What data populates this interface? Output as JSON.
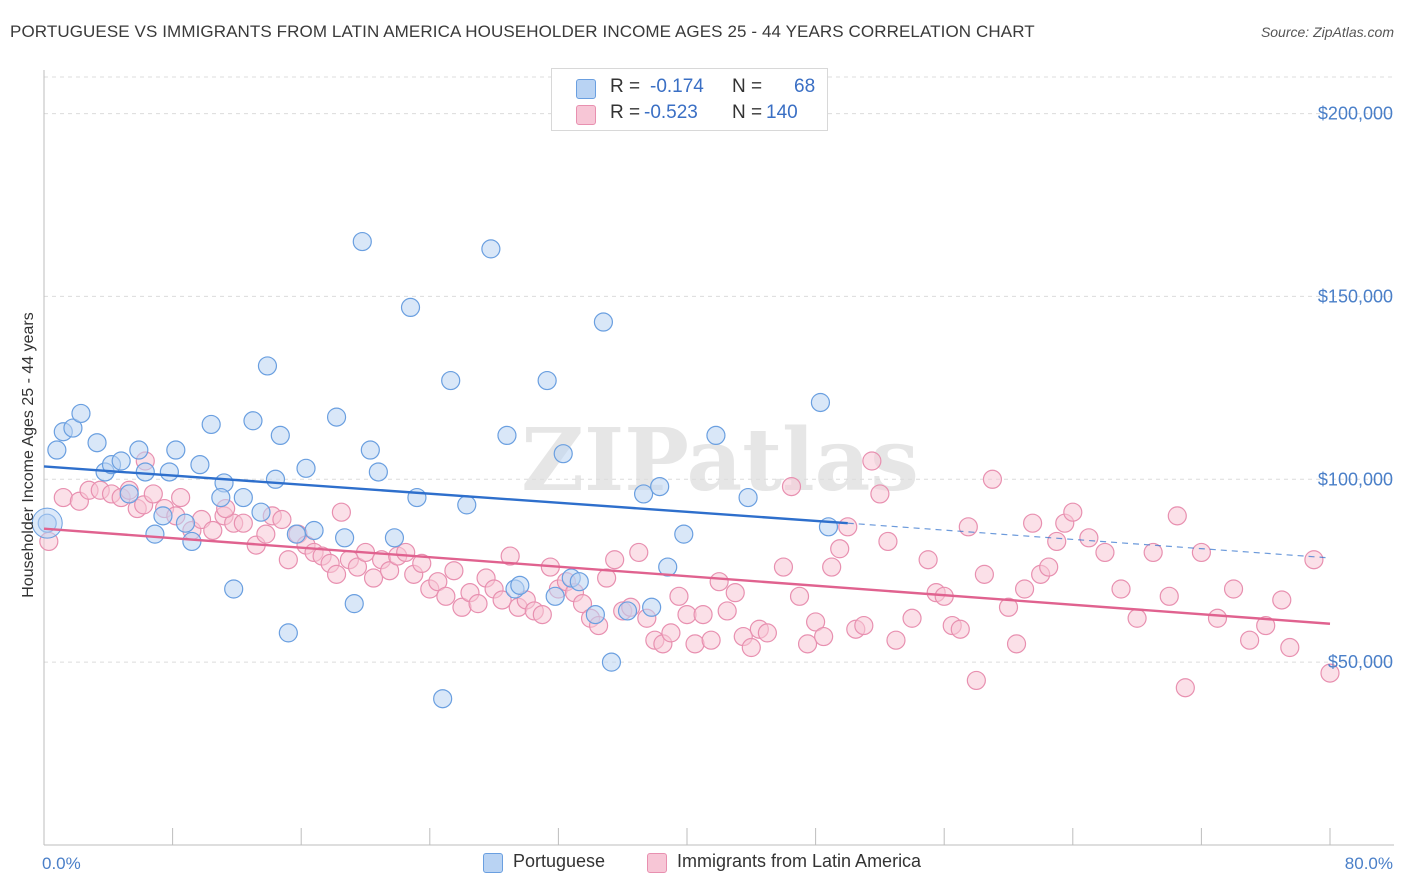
{
  "title": "PORTUGUESE VS IMMIGRANTS FROM LATIN AMERICA HOUSEHOLDER INCOME AGES 25 - 44 YEARS CORRELATION CHART",
  "source": "Source: ZipAtlas.com",
  "watermark": "ZIPatlas",
  "legend_top": {
    "rows": [
      {
        "r_label": "R =",
        "r_value": "-0.174",
        "n_label": "N =",
        "n_value": "68"
      },
      {
        "r_label": "R =",
        "r_value": "-0.523",
        "n_label": "N =",
        "n_value": "140"
      }
    ]
  },
  "legend_bottom": [
    "Portuguese",
    "Immigrants from Latin America"
  ],
  "colors": {
    "blue_fill": "#b9d3f3",
    "blue_stroke": "#6a9fe0",
    "blue_line": "#2e6fcc",
    "pink_fill": "#f7c6d6",
    "pink_stroke": "#e890b0",
    "pink_line": "#e0628f",
    "grid": "#dcdcdc",
    "axis_text": "#4a7fc8"
  },
  "chart_data": {
    "type": "scatter",
    "title": "PORTUGUESE VS IMMIGRANTS FROM LATIN AMERICA HOUSEHOLDER INCOME AGES 25 - 44 YEARS CORRELATION CHART",
    "xlabel": "",
    "ylabel": "Householder Income Ages 25 - 44 years",
    "xlim": [
      0,
      80
    ],
    "ylim": [
      0,
      210000
    ],
    "x_tick_labels": [
      "0.0%",
      "80.0%"
    ],
    "y_ticks": [
      50000,
      100000,
      150000,
      200000
    ],
    "y_tick_labels": [
      "$50,000",
      "$100,000",
      "$150,000",
      "$200,000"
    ],
    "grid": true,
    "legend_position": "top-center",
    "series": [
      {
        "name": "Portuguese",
        "color": "#6a9fe0",
        "r": -0.174,
        "n": 68,
        "trend": {
          "x0": 0,
          "y0": 103500,
          "x1": 50,
          "y1": 88000,
          "dashed_to_x": 80,
          "dashed_to_y": 78500
        },
        "points": [
          [
            0.2,
            88000
          ],
          [
            0.8,
            108000
          ],
          [
            1.2,
            113000
          ],
          [
            1.8,
            114000
          ],
          [
            2.3,
            118000
          ],
          [
            3.3,
            110000
          ],
          [
            3.8,
            102000
          ],
          [
            4.2,
            104000
          ],
          [
            4.8,
            105000
          ],
          [
            5.3,
            96000
          ],
          [
            5.9,
            108000
          ],
          [
            6.3,
            102000
          ],
          [
            6.9,
            85000
          ],
          [
            7.4,
            90000
          ],
          [
            7.8,
            102000
          ],
          [
            8.2,
            108000
          ],
          [
            8.8,
            88000
          ],
          [
            9.2,
            83000
          ],
          [
            9.7,
            104000
          ],
          [
            10.4,
            115000
          ],
          [
            11.2,
            99000
          ],
          [
            11.0,
            95000
          ],
          [
            11.8,
            70000
          ],
          [
            12.4,
            95000
          ],
          [
            13.0,
            116000
          ],
          [
            13.5,
            91000
          ],
          [
            13.9,
            131000
          ],
          [
            14.4,
            100000
          ],
          [
            14.7,
            112000
          ],
          [
            15.2,
            58000
          ],
          [
            15.7,
            85000
          ],
          [
            16.3,
            103000
          ],
          [
            16.8,
            86000
          ],
          [
            18.2,
            117000
          ],
          [
            18.7,
            84000
          ],
          [
            19.3,
            66000
          ],
          [
            19.8,
            165000
          ],
          [
            20.3,
            108000
          ],
          [
            20.8,
            102000
          ],
          [
            21.8,
            84000
          ],
          [
            22.8,
            147000
          ],
          [
            23.2,
            95000
          ],
          [
            24.8,
            40000
          ],
          [
            25.3,
            127000
          ],
          [
            26.3,
            93000
          ],
          [
            27.8,
            163000
          ],
          [
            28.8,
            112000
          ],
          [
            29.3,
            70000
          ],
          [
            29.6,
            71000
          ],
          [
            31.3,
            127000
          ],
          [
            31.8,
            68000
          ],
          [
            32.3,
            107000
          ],
          [
            32.8,
            73000
          ],
          [
            33.3,
            72000
          ],
          [
            34.3,
            63000
          ],
          [
            34.8,
            143000
          ],
          [
            35.3,
            50000
          ],
          [
            36.3,
            64000
          ],
          [
            37.3,
            96000
          ],
          [
            37.8,
            65000
          ],
          [
            38.3,
            98000
          ],
          [
            38.8,
            76000
          ],
          [
            39.8,
            85000
          ],
          [
            41.8,
            112000
          ],
          [
            43.8,
            95000
          ],
          [
            48.3,
            121000
          ],
          [
            48.8,
            87000
          ]
        ]
      },
      {
        "name": "Immigrants from Latin America",
        "color": "#e890b0",
        "r": -0.523,
        "n": 140,
        "trend": {
          "x0": 0,
          "y0": 86500,
          "x1": 80,
          "y1": 60500
        },
        "points": [
          [
            0.3,
            83000
          ],
          [
            1.2,
            95000
          ],
          [
            2.2,
            94000
          ],
          [
            2.8,
            97000
          ],
          [
            3.5,
            97000
          ],
          [
            4.2,
            96000
          ],
          [
            4.8,
            95000
          ],
          [
            5.3,
            97000
          ],
          [
            5.8,
            92000
          ],
          [
            6.2,
            93000
          ],
          [
            6.3,
            105000
          ],
          [
            6.8,
            96000
          ],
          [
            7.5,
            92000
          ],
          [
            8.2,
            90000
          ],
          [
            8.5,
            95000
          ],
          [
            9.2,
            86000
          ],
          [
            9.8,
            89000
          ],
          [
            10.5,
            86000
          ],
          [
            11.2,
            90000
          ],
          [
            11.8,
            88000
          ],
          [
            12.4,
            88000
          ],
          [
            13.2,
            82000
          ],
          [
            13.8,
            85000
          ],
          [
            14.2,
            90000
          ],
          [
            14.8,
            89000
          ],
          [
            15.2,
            78000
          ],
          [
            15.8,
            85000
          ],
          [
            16.3,
            82000
          ],
          [
            16.8,
            80000
          ],
          [
            17.3,
            79000
          ],
          [
            17.8,
            77000
          ],
          [
            18.2,
            74000
          ],
          [
            18.5,
            91000
          ],
          [
            19.0,
            78000
          ],
          [
            19.5,
            76000
          ],
          [
            20.0,
            80000
          ],
          [
            20.5,
            73000
          ],
          [
            21.0,
            78000
          ],
          [
            21.5,
            75000
          ],
          [
            22.0,
            79000
          ],
          [
            22.5,
            80000
          ],
          [
            23.0,
            74000
          ],
          [
            23.5,
            77000
          ],
          [
            24.0,
            70000
          ],
          [
            24.5,
            72000
          ],
          [
            25.0,
            68000
          ],
          [
            25.5,
            75000
          ],
          [
            26.0,
            65000
          ],
          [
            26.5,
            69000
          ],
          [
            27.0,
            66000
          ],
          [
            27.5,
            73000
          ],
          [
            28.0,
            70000
          ],
          [
            28.5,
            67000
          ],
          [
            29.0,
            79000
          ],
          [
            29.5,
            65000
          ],
          [
            30.0,
            67000
          ],
          [
            30.5,
            64000
          ],
          [
            31.0,
            63000
          ],
          [
            31.5,
            76000
          ],
          [
            32.0,
            70000
          ],
          [
            32.5,
            72000
          ],
          [
            33.0,
            69000
          ],
          [
            33.5,
            66000
          ],
          [
            34.0,
            62000
          ],
          [
            34.5,
            60000
          ],
          [
            35.0,
            73000
          ],
          [
            35.5,
            78000
          ],
          [
            36.0,
            64000
          ],
          [
            36.5,
            65000
          ],
          [
            37.0,
            80000
          ],
          [
            37.5,
            62000
          ],
          [
            38.0,
            56000
          ],
          [
            38.5,
            55000
          ],
          [
            39.0,
            58000
          ],
          [
            39.5,
            68000
          ],
          [
            40.0,
            63000
          ],
          [
            40.5,
            55000
          ],
          [
            41.0,
            63000
          ],
          [
            41.5,
            56000
          ],
          [
            42.0,
            72000
          ],
          [
            42.5,
            64000
          ],
          [
            43.0,
            69000
          ],
          [
            43.5,
            57000
          ],
          [
            44.0,
            54000
          ],
          [
            44.5,
            59000
          ],
          [
            45.0,
            58000
          ],
          [
            46.0,
            76000
          ],
          [
            46.5,
            98000
          ],
          [
            47.0,
            68000
          ],
          [
            47.5,
            55000
          ],
          [
            48.0,
            61000
          ],
          [
            48.5,
            57000
          ],
          [
            49.0,
            76000
          ],
          [
            49.5,
            81000
          ],
          [
            50.0,
            87000
          ],
          [
            50.5,
            59000
          ],
          [
            51.0,
            60000
          ],
          [
            51.5,
            105000
          ],
          [
            52.0,
            96000
          ],
          [
            52.5,
            83000
          ],
          [
            53.0,
            56000
          ],
          [
            54.0,
            62000
          ],
          [
            55.0,
            78000
          ],
          [
            55.5,
            69000
          ],
          [
            56.0,
            68000
          ],
          [
            56.5,
            60000
          ],
          [
            57.0,
            59000
          ],
          [
            57.5,
            87000
          ],
          [
            58.0,
            45000
          ],
          [
            58.5,
            74000
          ],
          [
            59.0,
            100000
          ],
          [
            60.0,
            65000
          ],
          [
            60.5,
            55000
          ],
          [
            61.0,
            70000
          ],
          [
            61.5,
            88000
          ],
          [
            62.0,
            74000
          ],
          [
            62.5,
            76000
          ],
          [
            63.0,
            83000
          ],
          [
            63.5,
            88000
          ],
          [
            64.0,
            91000
          ],
          [
            65.0,
            84000
          ],
          [
            66.0,
            80000
          ],
          [
            67.0,
            70000
          ],
          [
            68.0,
            62000
          ],
          [
            69.0,
            80000
          ],
          [
            70.0,
            68000
          ],
          [
            70.5,
            90000
          ],
          [
            71.0,
            43000
          ],
          [
            72.0,
            80000
          ],
          [
            73.0,
            62000
          ],
          [
            74.0,
            70000
          ],
          [
            75.0,
            56000
          ],
          [
            76.0,
            60000
          ],
          [
            77.0,
            67000
          ],
          [
            77.5,
            54000
          ],
          [
            79.0,
            78000
          ],
          [
            80.0,
            47000
          ],
          [
            11.3,
            92000
          ]
        ]
      }
    ]
  }
}
